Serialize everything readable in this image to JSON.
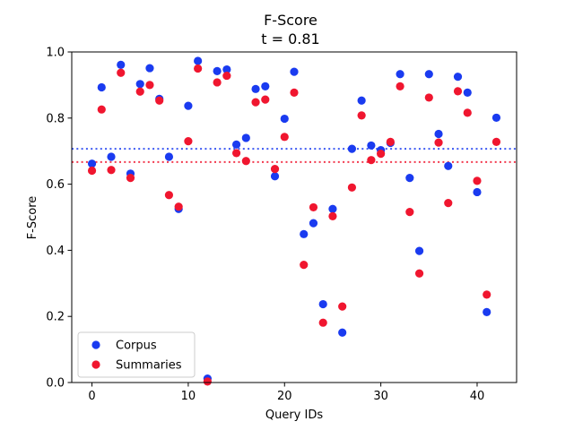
{
  "chart_data": {
    "type": "scatter",
    "title": "F-Score",
    "subtitle": "t = 0.81",
    "xlabel": "Query IDs",
    "ylabel": "F-Score",
    "xlim": [
      -2.1,
      44.1
    ],
    "ylim": [
      0.0,
      1.0
    ],
    "xticks": [
      0,
      10,
      20,
      30,
      40
    ],
    "yticks": [
      0.0,
      0.2,
      0.4,
      0.6,
      0.8,
      1.0
    ],
    "grid": false,
    "legend_position": "lower-left",
    "series": [
      {
        "name": "Corpus",
        "color": "#1a3bf0",
        "mean": 0.707,
        "x": [
          0,
          1,
          2,
          3,
          4,
          5,
          6,
          7,
          8,
          9,
          10,
          11,
          12,
          13,
          14,
          15,
          16,
          17,
          18,
          19,
          20,
          21,
          22,
          23,
          24,
          25,
          26,
          27,
          28,
          29,
          30,
          31,
          32,
          33,
          34,
          35,
          36,
          37,
          38,
          39,
          40,
          41,
          42
        ],
        "y": [
          0.662,
          0.893,
          0.683,
          0.961,
          0.632,
          0.903,
          0.951,
          0.858,
          0.683,
          0.525,
          0.837,
          0.973,
          0.012,
          0.942,
          0.947,
          0.72,
          0.74,
          0.888,
          0.896,
          0.624,
          0.798,
          0.94,
          0.449,
          0.482,
          0.237,
          0.525,
          0.151,
          0.707,
          0.853,
          0.717,
          0.703,
          0.725,
          0.933,
          0.619,
          0.398,
          0.933,
          0.752,
          0.655,
          0.925,
          0.877,
          0.576,
          0.213,
          0.801
        ]
      },
      {
        "name": "Summaries",
        "color": "#f0162f",
        "mean": 0.667,
        "x": [
          0,
          1,
          2,
          3,
          4,
          5,
          6,
          7,
          8,
          9,
          10,
          11,
          12,
          13,
          14,
          15,
          16,
          17,
          18,
          19,
          20,
          21,
          22,
          23,
          24,
          25,
          26,
          27,
          28,
          29,
          30,
          31,
          32,
          33,
          34,
          35,
          36,
          37,
          38,
          39,
          40,
          41,
          42
        ],
        "y": [
          0.641,
          0.826,
          0.643,
          0.937,
          0.619,
          0.88,
          0.9,
          0.853,
          0.567,
          0.532,
          0.73,
          0.95,
          0.003,
          0.908,
          0.928,
          0.694,
          0.67,
          0.848,
          0.856,
          0.646,
          0.743,
          0.877,
          0.356,
          0.53,
          0.181,
          0.503,
          0.23,
          0.59,
          0.808,
          0.673,
          0.692,
          0.728,
          0.896,
          0.516,
          0.33,
          0.862,
          0.726,
          0.543,
          0.881,
          0.816,
          0.61,
          0.266,
          0.728
        ]
      }
    ]
  }
}
